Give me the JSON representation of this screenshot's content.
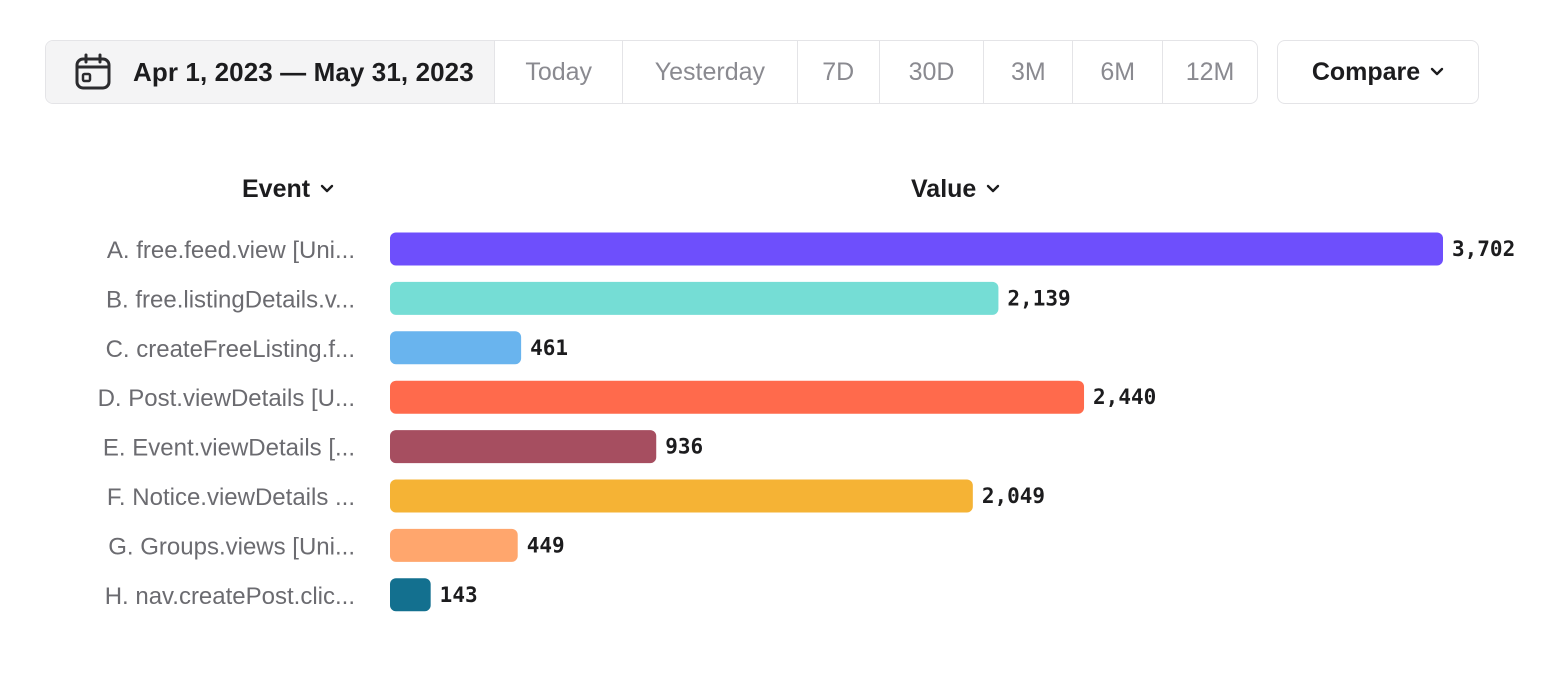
{
  "toolbar": {
    "date_range": "Apr 1, 2023 — May 31, 2023",
    "calendar_icon": "calendar-icon",
    "presets": [
      "Today",
      "Yesterday",
      "7D",
      "30D",
      "3M",
      "6M",
      "12M"
    ],
    "compare_label": "Compare",
    "compare_icon": "chevron-down-icon"
  },
  "columns": {
    "event": "Event",
    "value": "Value"
  },
  "chart_data": {
    "type": "bar",
    "orientation": "horizontal",
    "categories": [
      "A. free.feed.view [Uni...",
      "B. free.listingDetails.v...",
      "C. createFreeListing.f...",
      "D. Post.viewDetails [U...",
      "E. Event.viewDetails [...",
      "F. Notice.viewDetails ...",
      "G. Groups.views [Uni...",
      "H. nav.createPost.clic..."
    ],
    "values": [
      3702,
      2139,
      461,
      2440,
      936,
      2049,
      449,
      143
    ],
    "value_labels": [
      "3,702",
      "2,139",
      "461",
      "2,440",
      "936",
      "2,049",
      "449",
      "143"
    ],
    "colors": [
      "#6e4ffc",
      "#75ddd5",
      "#69b4ee",
      "#ff6a4c",
      "#a64e60",
      "#f5b335",
      "#ffa66d",
      "#13708f"
    ],
    "xlim": [
      0,
      3702
    ],
    "grid": false,
    "legend": "none"
  }
}
